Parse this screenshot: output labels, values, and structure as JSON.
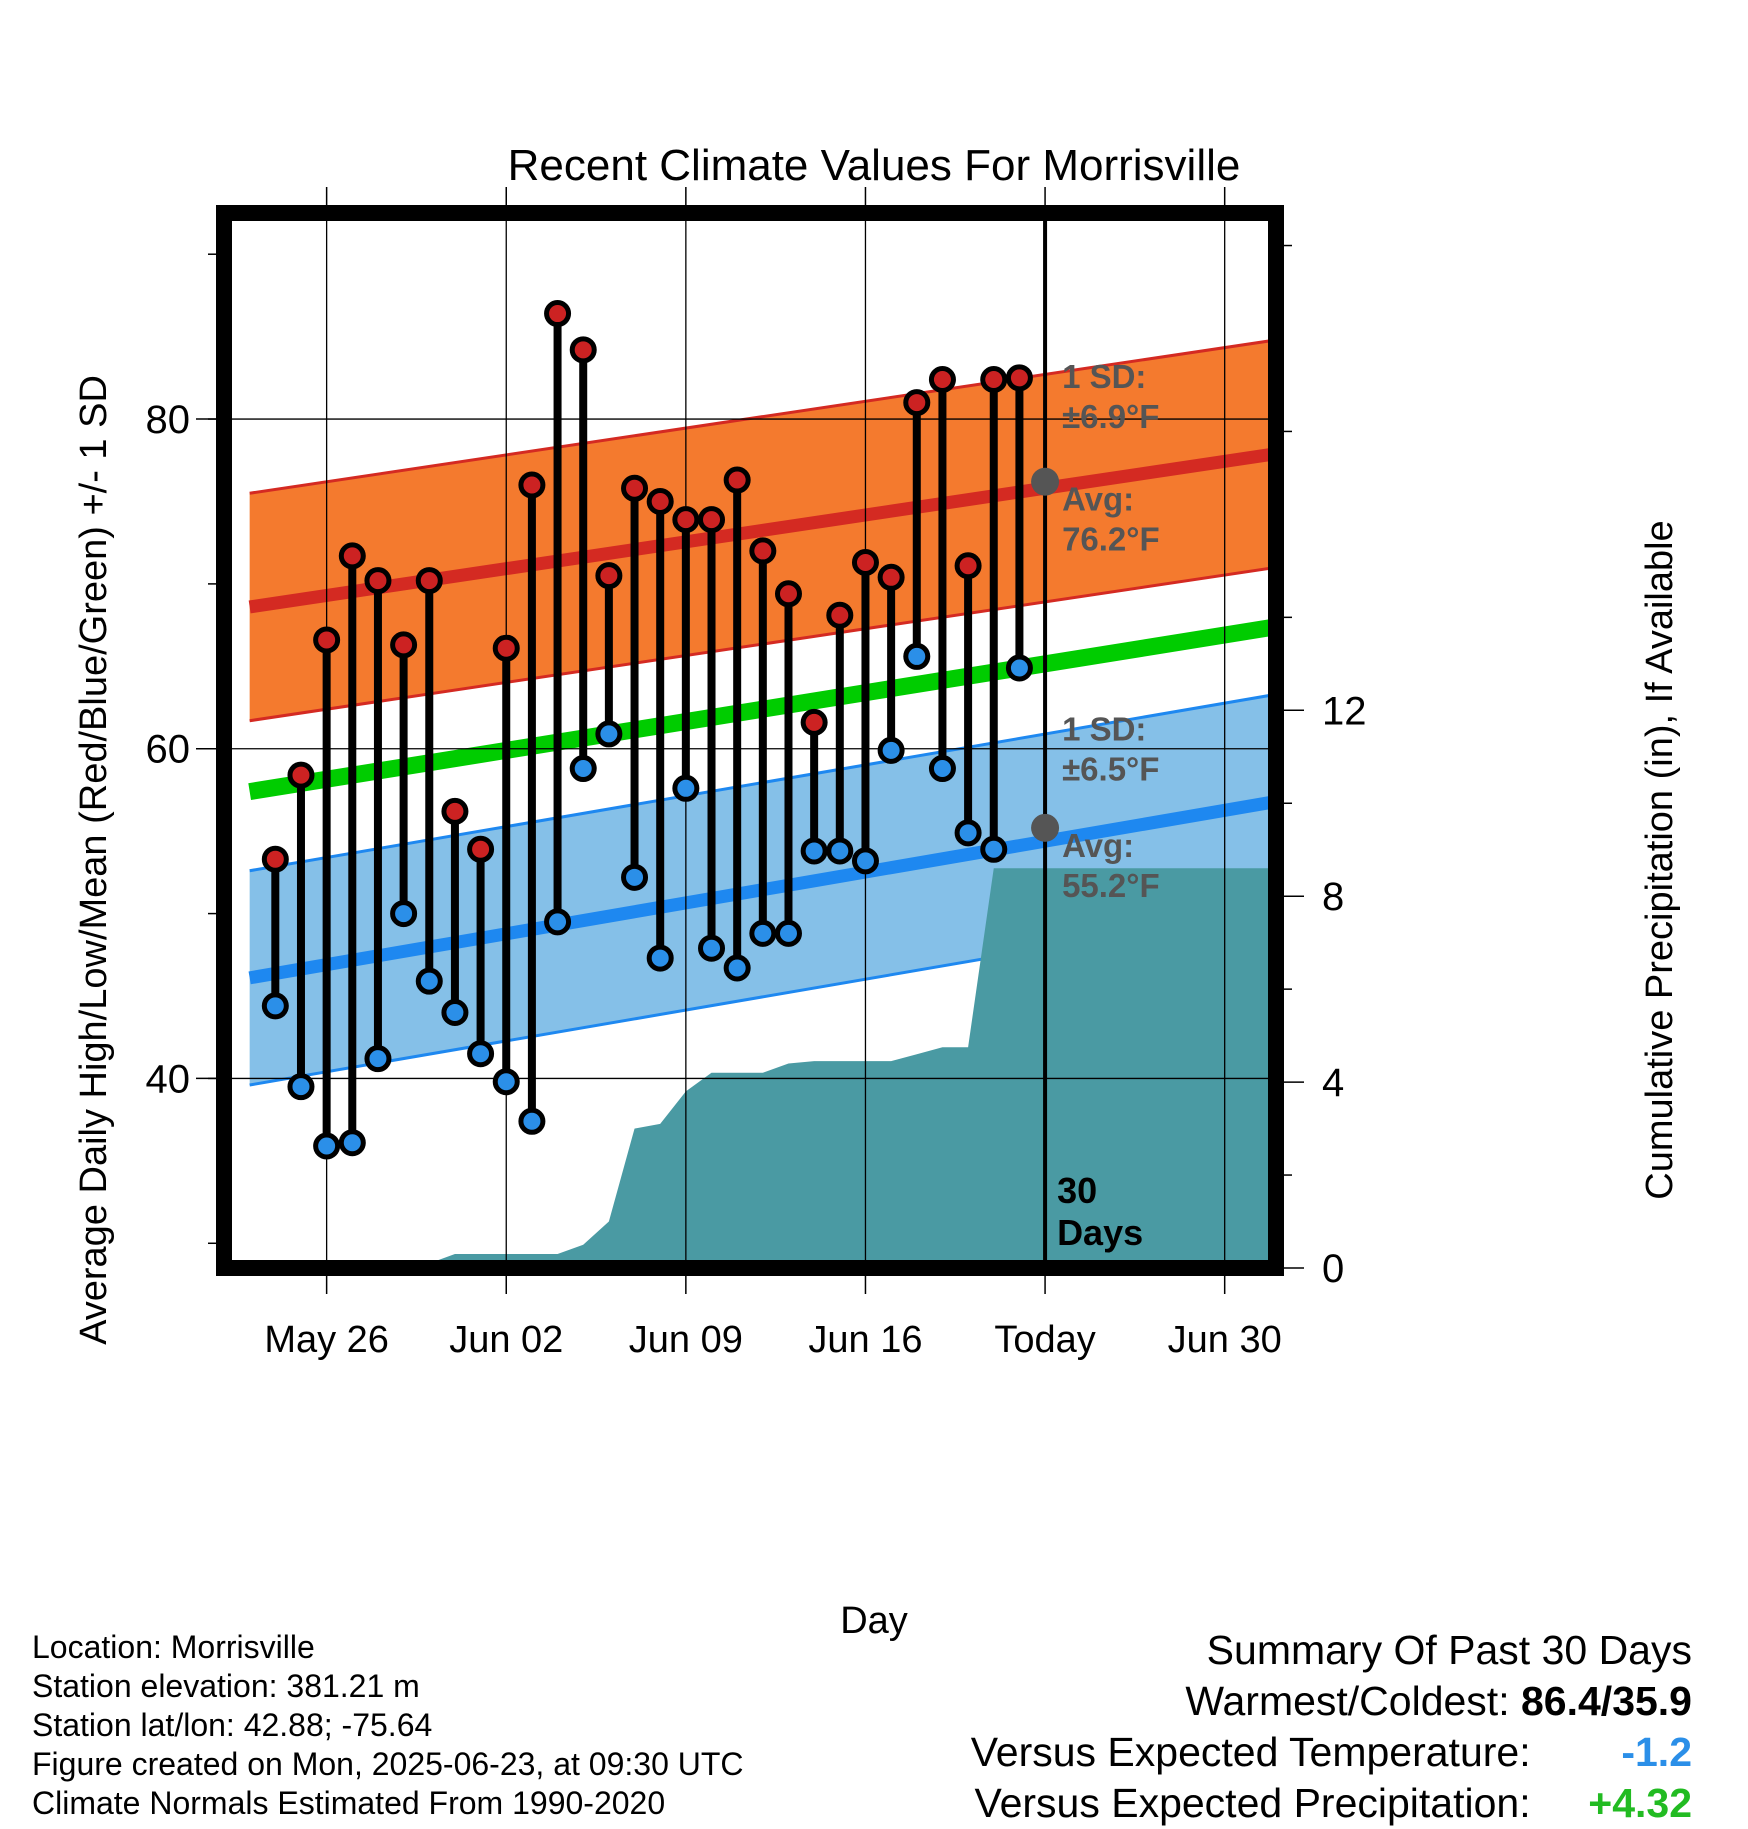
{
  "chart_data": {
    "type": "line",
    "title": "Recent Climate Values For Morrisville",
    "xlabel": "Day",
    "ylabel": "Average Daily High/Low/Mean (Red/Blue/Green) +/- 1 SD",
    "y2label": "Cumulative Precipitation (in), If Available",
    "xlim": [
      "2025-05-22",
      "2025-07-02"
    ],
    "ylim": [
      28.5,
      92.5
    ],
    "y2lim": [
      0,
      22.7
    ],
    "x_ticks": [
      "May 26",
      "Jun 02",
      "Jun 09",
      "Jun 16",
      "Today",
      "Jun 30"
    ],
    "y_ticks": [
      "40",
      "60",
      "80"
    ],
    "y2_ticks": [
      "0",
      "4",
      "8",
      "12"
    ],
    "grid": true,
    "colors": {
      "high_marker": "#cc2222",
      "low_marker": "#2b8fe8",
      "high_band": "#f47a2e",
      "high_line": "#d42a22",
      "low_band": "#85c0e8",
      "low_line": "#1e88f0",
      "mean_line": "#00cc00",
      "precip": "#4a9aa3",
      "summary_temp": "#2b8fe8",
      "summary_precip": "#22bb22"
    },
    "dates": [
      "2025-05-24",
      "2025-05-25",
      "2025-05-26",
      "2025-05-27",
      "2025-05-28",
      "2025-05-29",
      "2025-05-30",
      "2025-05-31",
      "2025-06-01",
      "2025-06-02",
      "2025-06-03",
      "2025-06-04",
      "2025-06-05",
      "2025-06-06",
      "2025-06-07",
      "2025-06-08",
      "2025-06-09",
      "2025-06-10",
      "2025-06-11",
      "2025-06-12",
      "2025-06-13",
      "2025-06-14",
      "2025-06-15",
      "2025-06-16",
      "2025-06-17",
      "2025-06-18",
      "2025-06-19",
      "2025-06-20",
      "2025-06-21",
      "2025-06-22"
    ],
    "series": [
      {
        "name": "High",
        "values": [
          53.3,
          58.4,
          66.6,
          71.7,
          70.2,
          66.3,
          70.2,
          56.2,
          53.9,
          66.1,
          76.0,
          86.4,
          84.2,
          70.5,
          75.8,
          75.0,
          73.9,
          73.9,
          76.3,
          72.0,
          69.4,
          61.6,
          68.1,
          71.3,
          70.4,
          81.0,
          82.4,
          71.1,
          82.4,
          82.5
        ]
      },
      {
        "name": "Low",
        "values": [
          44.4,
          39.5,
          35.9,
          36.1,
          41.2,
          50.0,
          45.9,
          44.0,
          41.5,
          39.8,
          37.4,
          49.5,
          58.8,
          60.9,
          52.2,
          47.3,
          57.6,
          47.9,
          46.7,
          48.8,
          48.8,
          53.8,
          53.8,
          53.2,
          59.9,
          65.6,
          58.8,
          54.9,
          53.9,
          64.9
        ]
      }
    ],
    "normals": {
      "dates": [
        "2025-05-23",
        "2025-07-02"
      ],
      "high_avg": [
        68.6,
        77.9
      ],
      "high_sd": 6.9,
      "low_avg": [
        46.1,
        56.8
      ],
      "low_sd": 6.5,
      "mean_avg": [
        57.4,
        67.4
      ]
    },
    "precip": {
      "dates": [
        "2025-05-23",
        "2025-05-24",
        "2025-05-25",
        "2025-05-26",
        "2025-05-27",
        "2025-05-28",
        "2025-05-29",
        "2025-05-30",
        "2025-05-31",
        "2025-06-01",
        "2025-06-02",
        "2025-06-03",
        "2025-06-04",
        "2025-06-05",
        "2025-06-06",
        "2025-06-07",
        "2025-06-08",
        "2025-06-09",
        "2025-06-10",
        "2025-06-11",
        "2025-06-12",
        "2025-06-13",
        "2025-06-14",
        "2025-06-15",
        "2025-06-16",
        "2025-06-17",
        "2025-06-18",
        "2025-06-19",
        "2025-06-20",
        "2025-06-21",
        "2025-06-22",
        "2025-07-02"
      ],
      "values": [
        0,
        0,
        0.05,
        0.05,
        0.05,
        0.08,
        0.1,
        0.1,
        0.3,
        0.3,
        0.3,
        0.3,
        0.3,
        0.5,
        1.0,
        3.0,
        3.1,
        3.8,
        4.2,
        4.2,
        4.2,
        4.4,
        4.45,
        4.45,
        4.45,
        4.45,
        4.6,
        4.75,
        4.75,
        8.6,
        8.6,
        8.6
      ]
    },
    "today": "2025-06-23",
    "annotations": {
      "high_sd_label": "1 SD:",
      "high_sd_value": "±6.9°F",
      "high_avg_label": "Avg:",
      "high_avg_value": "76.2°F",
      "high_avg_today": 76.2,
      "low_sd_label": "1 SD:",
      "low_sd_value": "±6.5°F",
      "low_avg_label": "Avg:",
      "low_avg_value": "55.2°F",
      "low_avg_today": 55.2,
      "days_line1": "30",
      "days_line2": "Days"
    }
  },
  "info": {
    "location": "Location: Morrisville",
    "elevation": "Station elevation: 381.21 m",
    "latlon": "Station lat/lon: 42.88; -75.64",
    "created": "Figure created on Mon, 2025-06-23, at 09:30 UTC",
    "normals": "Climate Normals Estimated From 1990-2020"
  },
  "summary": {
    "title": "Summary Of Past 30 Days",
    "warm_cold_label": "Warmest/Coldest:",
    "warm_cold_value": "86.4/35.9",
    "temp_label": "Versus Expected Temperature:",
    "temp_value": "-1.2",
    "precip_label": "Versus Expected Precipitation:",
    "precip_value": "+4.32"
  }
}
